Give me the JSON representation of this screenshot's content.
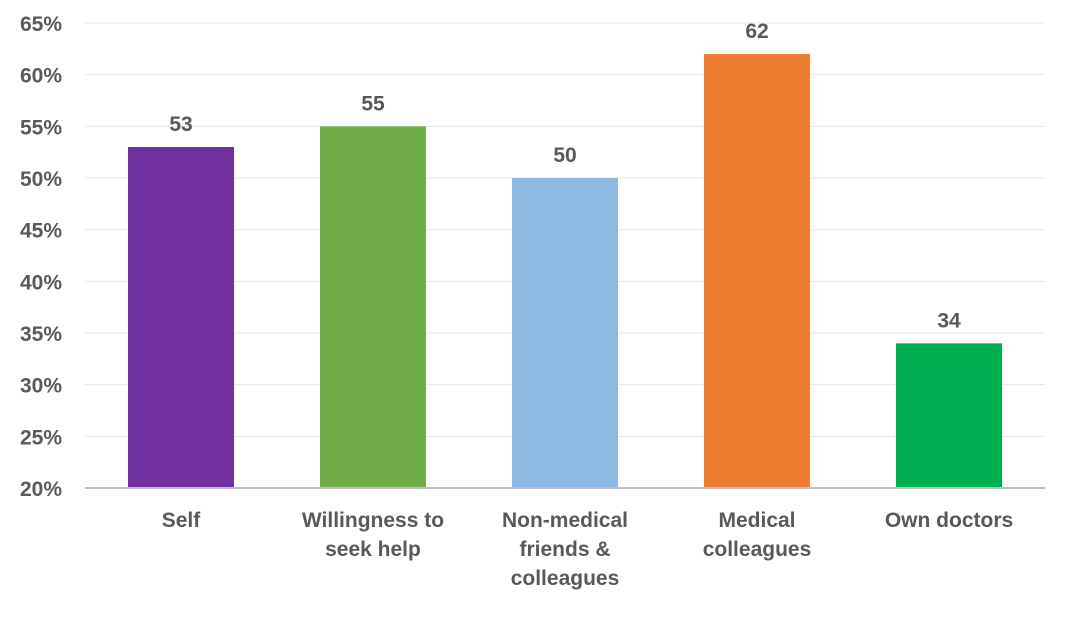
{
  "chart_data": {
    "type": "bar",
    "title": "",
    "xlabel": "",
    "ylabel": "",
    "categories": [
      [
        "Self"
      ],
      [
        "Willingness to",
        "seek help"
      ],
      [
        "Non-medical",
        "friends &",
        "colleagues"
      ],
      [
        "Medical",
        "colleagues"
      ],
      [
        "Own doctors"
      ]
    ],
    "values": [
      53,
      55,
      50,
      62,
      34
    ],
    "data_labels": [
      "53",
      "55",
      "50",
      "62",
      "34"
    ],
    "colors": [
      "#7030A0",
      "#70AD47",
      "#8DB9E3",
      "#ED7D31",
      "#00B050"
    ],
    "ylim": [
      20,
      65
    ],
    "yticks": [
      20,
      25,
      30,
      35,
      40,
      45,
      50,
      55,
      60,
      65
    ],
    "ytick_labels": [
      "20%",
      "25%",
      "30%",
      "35%",
      "40%",
      "45%",
      "50%",
      "55%",
      "60%",
      "65%"
    ],
    "grid": true,
    "legend": "none"
  }
}
